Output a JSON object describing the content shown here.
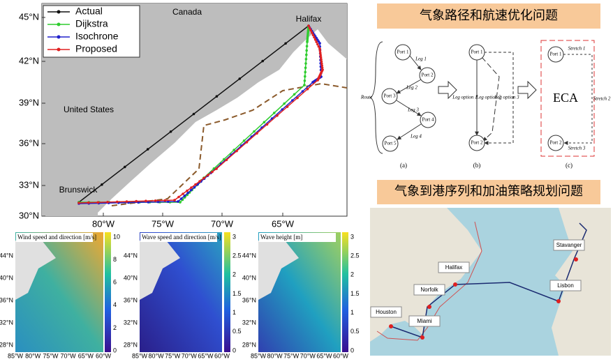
{
  "route_map": {
    "legend": [
      "Actual",
      "Dijkstra",
      "Isochrone",
      "Proposed"
    ],
    "lat_ticks": [
      "45°N",
      "42°N",
      "39°N",
      "36°N",
      "33°N",
      "30°N"
    ],
    "lon_ticks": [
      "80°W",
      "75°W",
      "70°W",
      "65°W"
    ],
    "places": {
      "canada": "Canada",
      "halifax": "Halifax",
      "us": "United States",
      "brunswick": "Brunswick"
    }
  },
  "field_maps": [
    {
      "title": "Wind speed and direction [m/s]",
      "lat_ticks": [
        "44°N",
        "40°N",
        "36°N",
        "32°N",
        "28°N"
      ],
      "lon_ticks": [
        "85°W",
        "80°W",
        "75°W",
        "70°W",
        "65°W",
        "60°W"
      ],
      "colorbar_ticks": [
        "10",
        "8",
        "6",
        "4",
        "2",
        "0"
      ]
    },
    {
      "title": "Wave speed and direction [m/s]",
      "lat_ticks": [
        "44°N",
        "40°N",
        "36°N",
        "32°N",
        "28°N"
      ],
      "lon_ticks": [
        "85°W",
        "80°W",
        "75°W",
        "70°W",
        "65°W",
        "60°W"
      ],
      "colorbar_ticks": [
        "3",
        "2.5",
        "2",
        "1.5",
        "1",
        "0.5",
        "0"
      ]
    },
    {
      "title": "Wave height [m]",
      "lat_ticks": [
        "44°N",
        "40°N",
        "36°N",
        "32°N",
        "28°N"
      ],
      "lon_ticks": [
        "85°W",
        "80°W",
        "75°W",
        "70°W",
        "65°W",
        "60°W"
      ],
      "colorbar_ticks": [
        "3",
        "2.5",
        "2",
        "1.5",
        "1",
        "0.5",
        "0"
      ]
    }
  ],
  "diagram": {
    "header": "气象路径和航速优化问题",
    "a": {
      "route": "Route",
      "ports": [
        "Port 1",
        "Port 2",
        "Port 3",
        "Port 4",
        "Port 5"
      ],
      "legs": [
        "Leg 1",
        "Leg 2",
        "Leg 3",
        "Leg 4"
      ],
      "caption": "(a)"
    },
    "b": {
      "ports": [
        "Port 1",
        "Port 2"
      ],
      "options": [
        "Leg option 1",
        "Leg option 2",
        "Leg option 3"
      ],
      "caption": "(b)"
    },
    "c": {
      "ports": [
        "Port 1",
        "Port 2"
      ],
      "eca": "ECA",
      "stretches": [
        "Stretch 1",
        "Stretch 2",
        "Stretch 3"
      ],
      "caption": "(c)"
    }
  },
  "port_map": {
    "header": "气象到港序列和加油策略规划问题",
    "labels": [
      "Halifax",
      "Norfolk",
      "Houston",
      "Miami",
      "Stavanger",
      "Lisbon"
    ]
  }
}
